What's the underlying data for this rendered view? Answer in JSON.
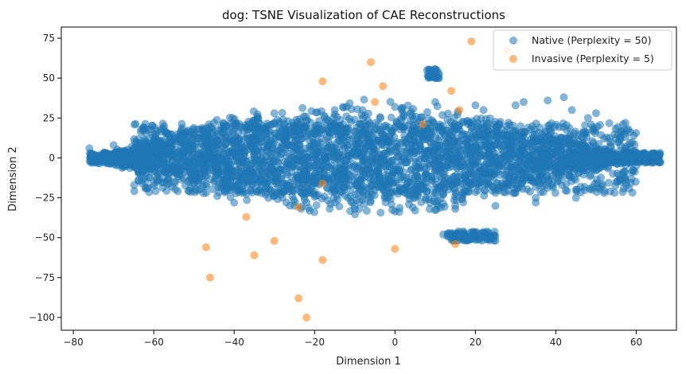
{
  "chart_data": {
    "type": "scatter",
    "title": "dog: TSNE Visualization of CAE Reconstructions",
    "xlabel": "Dimension 1",
    "ylabel": "Dimension 2",
    "xlim": [
      -83,
      70
    ],
    "ylim": [
      -108,
      82
    ],
    "xticks": [
      -80,
      -60,
      -40,
      -20,
      0,
      20,
      40,
      60
    ],
    "yticks": [
      -100,
      -75,
      -50,
      -25,
      0,
      25,
      50,
      75
    ],
    "grid": false,
    "legend_position": "top-right",
    "series": [
      {
        "name": "Native (Perplexity = 50)",
        "color": "#1f77b4",
        "alpha": 0.55,
        "cloud": true,
        "points": [
          [
            -76,
            6
          ],
          [
            -70,
            8
          ],
          [
            -66,
            -2
          ],
          [
            -60,
            10
          ],
          [
            -55,
            -8
          ],
          [
            -50,
            15
          ],
          [
            -45,
            -15
          ],
          [
            -42,
            20
          ],
          [
            -38,
            -20
          ],
          [
            -35,
            12
          ],
          [
            -30,
            22
          ],
          [
            -28,
            -25
          ],
          [
            -25,
            5
          ],
          [
            -22,
            -10
          ],
          [
            -18,
            18
          ],
          [
            -15,
            -28
          ],
          [
            -12,
            8
          ],
          [
            -10,
            -5
          ],
          [
            -8,
            25
          ],
          [
            -5,
            -20
          ],
          [
            -2,
            10
          ],
          [
            0,
            -15
          ],
          [
            2,
            28
          ],
          [
            5,
            -25
          ],
          [
            8,
            12
          ],
          [
            10,
            -8
          ],
          [
            12,
            20
          ],
          [
            15,
            -30
          ],
          [
            18,
            5
          ],
          [
            20,
            -12
          ],
          [
            22,
            30
          ],
          [
            25,
            -20
          ],
          [
            28,
            15
          ],
          [
            30,
            -5
          ],
          [
            32,
            35
          ],
          [
            35,
            -25
          ],
          [
            38,
            20
          ],
          [
            40,
            -10
          ],
          [
            42,
            38
          ],
          [
            45,
            -20
          ],
          [
            48,
            25
          ],
          [
            50,
            -8
          ],
          [
            52,
            12
          ],
          [
            55,
            -15
          ],
          [
            58,
            8
          ],
          [
            60,
            -5
          ],
          [
            62,
            2
          ],
          [
            64,
            -3
          ],
          [
            66,
            -3
          ],
          [
            -47,
            -22
          ],
          [
            -45,
            22
          ],
          [
            -40,
            -28
          ],
          [
            -25,
            -30
          ],
          [
            -10,
            -32
          ],
          [
            5,
            -33
          ],
          [
            15,
            -32
          ],
          [
            25,
            -30
          ],
          [
            35,
            -28
          ],
          [
            45,
            -25
          ],
          [
            52,
            -22
          ],
          [
            -30,
            28
          ],
          [
            -15,
            30
          ],
          [
            0,
            32
          ],
          [
            10,
            35
          ],
          [
            20,
            33
          ],
          [
            30,
            33
          ],
          [
            38,
            36
          ],
          [
            44,
            30
          ],
          [
            50,
            28
          ],
          [
            9,
            53
          ],
          [
            10,
            50
          ],
          [
            8,
            55
          ],
          [
            14,
            -47
          ],
          [
            17,
            -49
          ],
          [
            20,
            -50
          ],
          [
            23,
            -51
          ],
          [
            25,
            -49
          ],
          [
            19,
            -47
          ],
          [
            15,
            -48
          ],
          [
            12,
            -48
          ]
        ]
      },
      {
        "name": "Invasive (Perplexity = 5)",
        "color": "#ff7f0e",
        "alpha": 0.55,
        "points": [
          [
            19,
            73
          ],
          [
            28,
            67
          ],
          [
            -6,
            60
          ],
          [
            -18,
            48
          ],
          [
            -3,
            45
          ],
          [
            14,
            42
          ],
          [
            -5,
            35
          ],
          [
            16,
            30
          ],
          [
            7,
            21
          ],
          [
            -18,
            -16
          ],
          [
            -24,
            -31
          ],
          [
            -37,
            -37
          ],
          [
            -30,
            -52
          ],
          [
            -47,
            -56
          ],
          [
            -35,
            -61
          ],
          [
            -18,
            -64
          ],
          [
            0,
            -57
          ],
          [
            15,
            -54
          ],
          [
            -46,
            -75
          ],
          [
            -24,
            -88
          ],
          [
            -22,
            -100
          ]
        ]
      }
    ]
  }
}
